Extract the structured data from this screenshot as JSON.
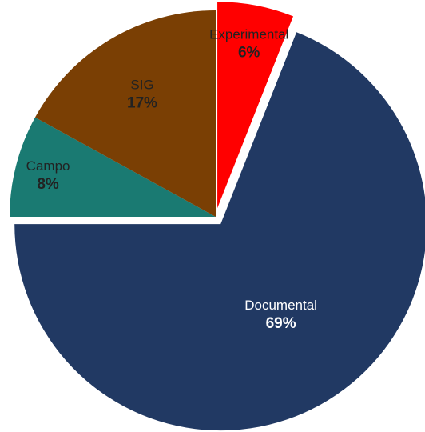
{
  "chart_data": {
    "type": "pie",
    "slices": [
      {
        "label": "Experimental",
        "value": 6,
        "value_label": "6%",
        "color": "#ff0000",
        "label_color": "#222222",
        "exploded": true
      },
      {
        "label": "Documental",
        "value": 69,
        "value_label": "69%",
        "color": "#213963",
        "label_color": "#ffffff",
        "exploded": true
      },
      {
        "label": "Campo",
        "value": 8,
        "value_label": "8%",
        "color": "#1a7a72",
        "label_color": "#222222",
        "exploded": false
      },
      {
        "label": "SIG",
        "value": 17,
        "value_label": "17%",
        "color": "#7a3f04",
        "label_color": "#222222",
        "exploded": false
      }
    ],
    "start_angle_deg": 0,
    "direction": "clockwise",
    "legend": "none",
    "title": ""
  }
}
